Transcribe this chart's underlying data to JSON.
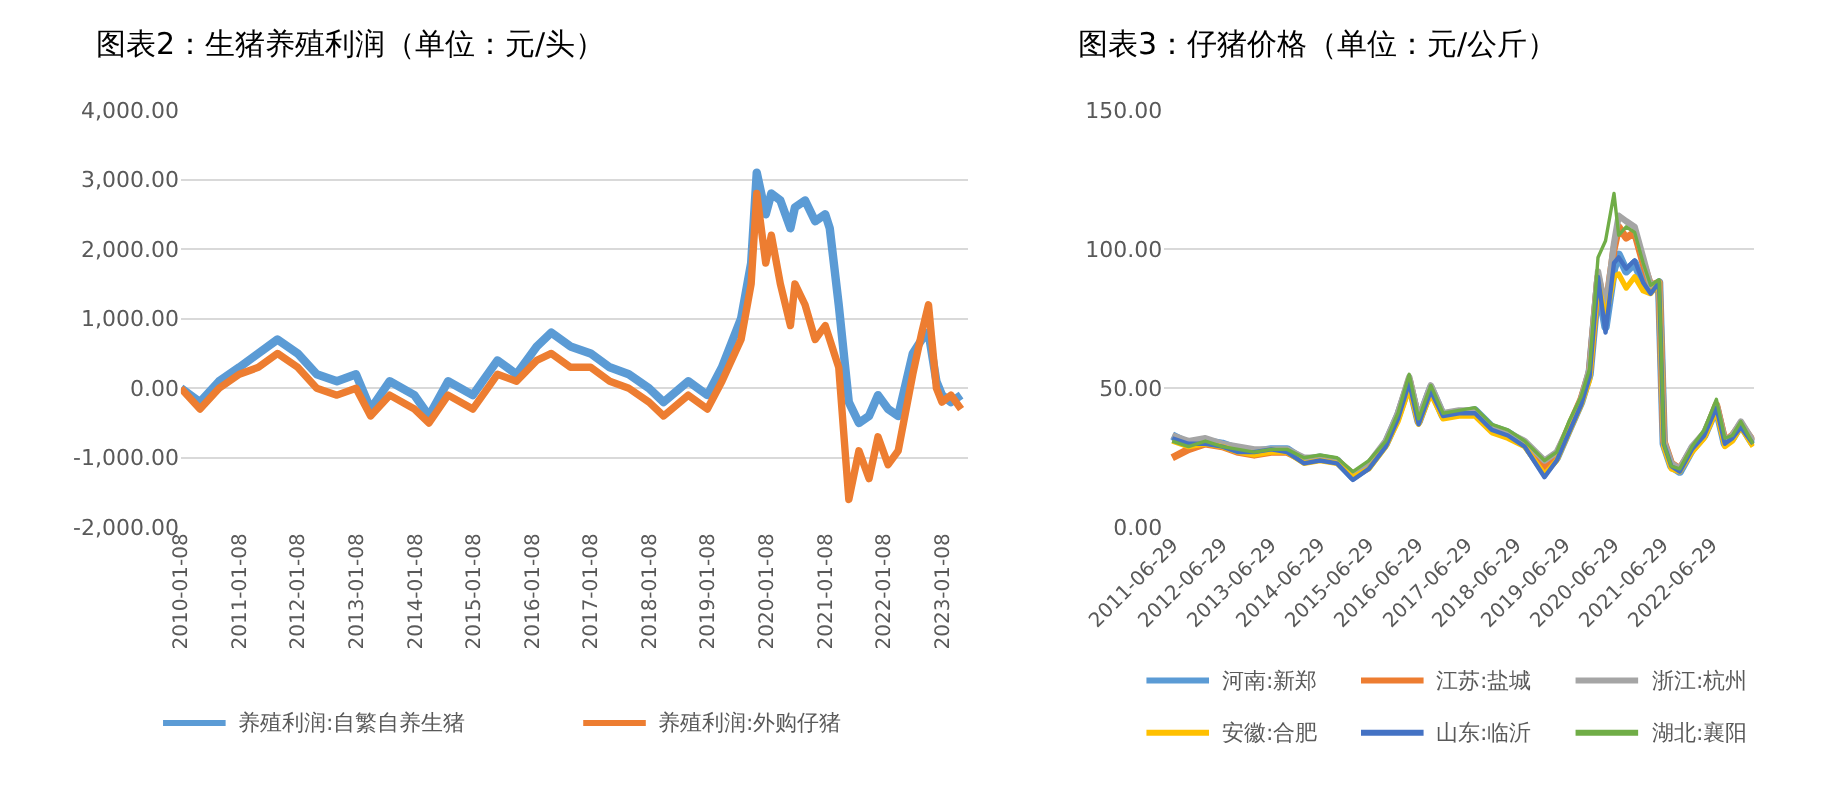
{
  "chart_data": [
    {
      "type": "line",
      "title": "图表2：生猪养殖利润（单位：元/头）",
      "legend": "bottom",
      "grid": "y",
      "marker": "none",
      "line_style": "solid",
      "x": [
        "2010-01-08",
        "2010-05-07",
        "2010-09-03",
        "2011-01-07",
        "2011-05-06",
        "2011-09-02",
        "2012-01-06",
        "2012-05-04",
        "2012-09-07",
        "2013-01-04",
        "2013-04-05",
        "2013-08-02",
        "2014-01-03",
        "2014-04-04",
        "2014-08-01",
        "2015-01-02",
        "2015-06-05",
        "2015-10-02",
        "2016-02-05",
        "2016-05-06",
        "2016-09-02",
        "2017-01-06",
        "2017-05-05",
        "2017-09-01",
        "2018-01-05",
        "2018-04-06",
        "2018-09-07",
        "2019-01-04",
        "2019-04-05",
        "2019-08-02",
        "2019-10-04",
        "2019-11-08",
        "2020-01-03",
        "2020-02-07",
        "2020-04-03",
        "2020-06-05",
        "2020-07-03",
        "2020-09-04",
        "2020-11-06",
        "2021-01-08",
        "2021-02-05",
        "2021-04-02",
        "2021-06-04",
        "2021-08-06",
        "2021-10-08",
        "2021-12-03",
        "2022-02-04",
        "2022-04-08",
        "2022-07-08",
        "2022-09-02",
        "2022-10-14",
        "2022-12-02",
        "2023-01-06",
        "2023-03-03",
        "2023-05-05"
      ],
      "xlim": [
        "2010-01-08",
        "2023-06-15"
      ],
      "xticks": [
        {
          "value": "2010-01-08",
          "label": "2010-01-08"
        },
        {
          "value": "2011-01-08",
          "label": "2011-01-08"
        },
        {
          "value": "2012-01-08",
          "label": "2012-01-08"
        },
        {
          "value": "2013-01-08",
          "label": "2013-01-08"
        },
        {
          "value": "2014-01-08",
          "label": "2014-01-08"
        },
        {
          "value": "2015-01-08",
          "label": "2015-01-08"
        },
        {
          "value": "2016-01-08",
          "label": "2016-01-08"
        },
        {
          "value": "2017-01-08",
          "label": "2017-01-08"
        },
        {
          "value": "2018-01-08",
          "label": "2018-01-08"
        },
        {
          "value": "2019-01-08",
          "label": "2019-01-08"
        },
        {
          "value": "2020-01-08",
          "label": "2020-01-08"
        },
        {
          "value": "2021-01-08",
          "label": "2021-01-08"
        },
        {
          "value": "2022-01-08",
          "label": "2022-01-08"
        },
        {
          "value": "2023-01-08",
          "label": "2023-01-08"
        }
      ],
      "ylim": [
        -2000,
        4000
      ],
      "yticks": [
        {
          "value": -2000,
          "label": "-2,000.00"
        },
        {
          "value": -1000,
          "label": "-1,000.00"
        },
        {
          "value": 0,
          "label": "0.00"
        },
        {
          "value": 1000,
          "label": "1,000.00"
        },
        {
          "value": 2000,
          "label": "2,000.00"
        },
        {
          "value": 3000,
          "label": "3,000.00"
        },
        {
          "value": 4000,
          "label": "4,000.00"
        }
      ],
      "series": [
        {
          "name": "养殖利润:自繁自养生猪",
          "color": "#5b9bd5",
          "values": [
            0,
            -200,
            100,
            300,
            500,
            700,
            500,
            200,
            100,
            200,
            -300,
            100,
            -100,
            -400,
            100,
            -100,
            400,
            200,
            600,
            800,
            600,
            500,
            300,
            200,
            0,
            -200,
            100,
            -100,
            300,
            1000,
            1800,
            3100,
            2500,
            2800,
            2700,
            2300,
            2600,
            2700,
            2400,
            2500,
            2300,
            1200,
            -200,
            -500,
            -400,
            -100,
            -300,
            -400,
            500,
            700,
            800,
            100,
            -100,
            -200,
            -100
          ]
        },
        {
          "name": "养殖利润:外购仔猪",
          "color": "#ed7d31",
          "values": [
            0,
            -300,
            0,
            200,
            300,
            500,
            300,
            0,
            -100,
            0,
            -400,
            -100,
            -300,
            -500,
            -100,
            -300,
            200,
            100,
            400,
            500,
            300,
            300,
            100,
            0,
            -200,
            -400,
            -100,
            -300,
            100,
            700,
            1500,
            2800,
            1800,
            2200,
            1500,
            900,
            1500,
            1200,
            700,
            900,
            700,
            300,
            -1600,
            -900,
            -1300,
            -700,
            -1100,
            -900,
            200,
            800,
            1200,
            0,
            -200,
            -100,
            -300
          ]
        }
      ]
    },
    {
      "type": "line",
      "title": "图表3：仔猪价格（单位：元/公斤）",
      "legend": "bottom",
      "grid": "y",
      "marker": "none",
      "line_style": "solid",
      "x": [
        "2011-06-29",
        "2011-10-28",
        "2012-03-02",
        "2012-07-06",
        "2012-11-02",
        "2013-03-01",
        "2013-07-05",
        "2013-11-01",
        "2014-03-07",
        "2014-07-04",
        "2014-11-07",
        "2015-03-06",
        "2015-07-03",
        "2015-11-06",
        "2016-02-05",
        "2016-04-29",
        "2016-07-08",
        "2016-10-07",
        "2017-01-06",
        "2017-05-05",
        "2017-09-01",
        "2018-01-05",
        "2018-05-04",
        "2018-09-07",
        "2019-02-01",
        "2019-05-03",
        "2019-08-02",
        "2019-11-01",
        "2020-01-03",
        "2020-03-06",
        "2020-05-01",
        "2020-07-03",
        "2020-08-07",
        "2020-10-02",
        "2020-12-04",
        "2021-02-05",
        "2021-04-02",
        "2021-06-04",
        "2021-07-09",
        "2021-09-03",
        "2021-11-05",
        "2022-02-04",
        "2022-05-06",
        "2022-08-05",
        "2022-10-07",
        "2022-12-02",
        "2023-02-03",
        "2023-05-05"
      ],
      "xlim": [
        "2011-05-01",
        "2023-05-15"
      ],
      "xticks": [
        {
          "value": "2011-06-29",
          "label": "2011-06-29"
        },
        {
          "value": "2012-06-29",
          "label": "2012-06-29"
        },
        {
          "value": "2013-06-29",
          "label": "2013-06-29"
        },
        {
          "value": "2014-06-29",
          "label": "2014-06-29"
        },
        {
          "value": "2015-06-29",
          "label": "2015-06-29"
        },
        {
          "value": "2016-06-29",
          "label": "2016-06-29"
        },
        {
          "value": "2017-06-29",
          "label": "2017-06-29"
        },
        {
          "value": "2018-06-29",
          "label": "2018-06-29"
        },
        {
          "value": "2019-06-29",
          "label": "2019-06-29"
        },
        {
          "value": "2020-06-29",
          "label": "2020-06-29"
        },
        {
          "value": "2021-06-29",
          "label": "2021-06-29"
        },
        {
          "value": "2022-06-29",
          "label": "2022-06-29"
        }
      ],
      "ylim": [
        0,
        150
      ],
      "yticks": [
        {
          "value": 0,
          "label": "0.00"
        },
        {
          "value": 50,
          "label": "50.00"
        },
        {
          "value": 100,
          "label": "100.00"
        },
        {
          "value": 150,
          "label": "150.00"
        }
      ],
      "series": [
        {
          "name": "河南:新郑",
          "color": "#5b9bd5",
          "values": [
            33,
            30,
            31,
            30,
            28,
            27,
            28,
            28,
            24,
            25,
            24,
            18,
            22,
            30,
            40,
            52,
            38,
            50,
            40,
            41,
            42,
            36,
            34,
            30,
            20,
            25,
            35,
            45,
            55,
            88,
            72,
            93,
            98,
            92,
            95,
            88,
            85,
            88,
            30,
            22,
            20,
            28,
            33,
            43,
            30,
            32,
            37,
            30
          ]
        },
        {
          "name": "江苏:盐城",
          "color": "#ed7d31",
          "values": [
            25,
            28,
            30,
            29,
            27,
            26,
            27,
            27,
            24,
            25,
            24,
            19,
            22,
            30,
            40,
            53,
            38,
            50,
            40,
            41,
            41,
            35,
            33,
            30,
            22,
            26,
            36,
            46,
            56,
            90,
            78,
            100,
            108,
            104,
            106,
            95,
            87,
            88,
            31,
            23,
            21,
            28,
            33,
            44,
            31,
            33,
            37,
            31
          ]
        },
        {
          "name": "浙江:杭州",
          "color": "#a5a5a5",
          "values": [
            33,
            31,
            32,
            30,
            29,
            28,
            28,
            28,
            25,
            25,
            24,
            19,
            23,
            31,
            41,
            54,
            39,
            51,
            41,
            42,
            42,
            36,
            34,
            31,
            24,
            27,
            36,
            46,
            57,
            92,
            78,
            102,
            112,
            110,
            108,
            97,
            87,
            88,
            31,
            23,
            21,
            29,
            34,
            44,
            31,
            33,
            38,
            31
          ]
        },
        {
          "name": "安徽:合肥",
          "color": "#ffc000",
          "values": [
            31,
            29,
            30,
            29,
            27,
            26,
            27,
            27,
            23,
            24,
            23,
            18,
            21,
            29,
            38,
            50,
            37,
            48,
            39,
            40,
            40,
            34,
            32,
            29,
            19,
            24,
            34,
            44,
            53,
            88,
            75,
            90,
            91,
            86,
            90,
            85,
            84,
            88,
            29,
            21,
            20,
            27,
            32,
            42,
            29,
            31,
            36,
            29
          ]
        },
        {
          "name": "山东:临沂",
          "color": "#4472c4",
          "values": [
            32,
            30,
            30,
            29,
            27,
            27,
            28,
            27,
            23,
            24,
            23,
            17,
            21,
            29,
            39,
            52,
            37,
            49,
            40,
            41,
            41,
            35,
            33,
            29,
            18,
            24,
            34,
            44,
            54,
            90,
            70,
            95,
            97,
            93,
            96,
            88,
            84,
            88,
            30,
            22,
            20,
            28,
            33,
            43,
            30,
            32,
            36,
            30
          ]
        },
        {
          "name": "湖北:襄阳",
          "color": "#70ad47",
          "values": [
            31,
            29,
            31,
            29,
            28,
            27,
            28,
            28,
            25,
            26,
            25,
            20,
            24,
            31,
            41,
            55,
            39,
            51,
            41,
            42,
            43,
            37,
            35,
            31,
            24,
            27,
            38,
            47,
            57,
            97,
            103,
            120,
            105,
            108,
            106,
            95,
            87,
            89,
            30,
            22,
            21,
            29,
            35,
            46,
            32,
            33,
            38,
            30
          ]
        }
      ]
    }
  ]
}
